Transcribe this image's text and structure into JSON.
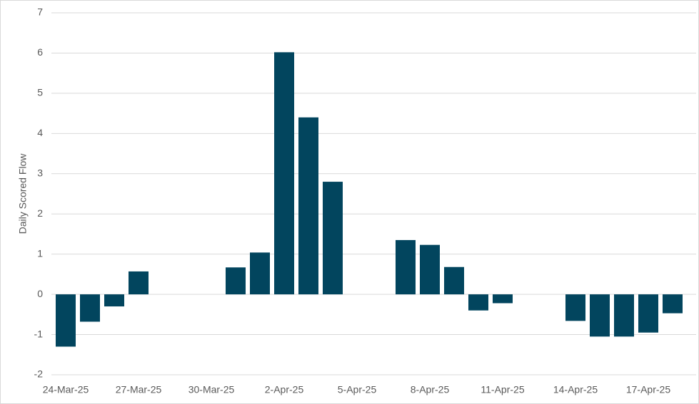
{
  "chart_data": {
    "type": "bar",
    "y_label": "Daily Scored Flow",
    "categories": [
      "24-Mar-25",
      null,
      null,
      "27-Mar-25",
      null,
      null,
      "30-Mar-25",
      null,
      null,
      "2-Apr-25",
      null,
      null,
      "5-Apr-25",
      null,
      null,
      "8-Apr-25",
      null,
      null,
      "11-Apr-25",
      null,
      null,
      "14-Apr-25",
      null,
      null,
      "17-Apr-25",
      null
    ],
    "values": [
      -1.3,
      -0.68,
      -0.3,
      0.57,
      null,
      null,
      null,
      0.67,
      1.04,
      6.02,
      4.4,
      2.8,
      null,
      null,
      1.35,
      1.23,
      0.68,
      -0.4,
      -0.22,
      null,
      null,
      -0.66,
      -1.05,
      -1.05,
      -0.95,
      -0.47
    ],
    "color": "#02455e",
    "ylim": [
      -2,
      7
    ],
    "yticks": [
      -2,
      -1,
      0,
      1,
      2,
      3,
      4,
      5,
      6,
      7
    ],
    "grid": true
  }
}
